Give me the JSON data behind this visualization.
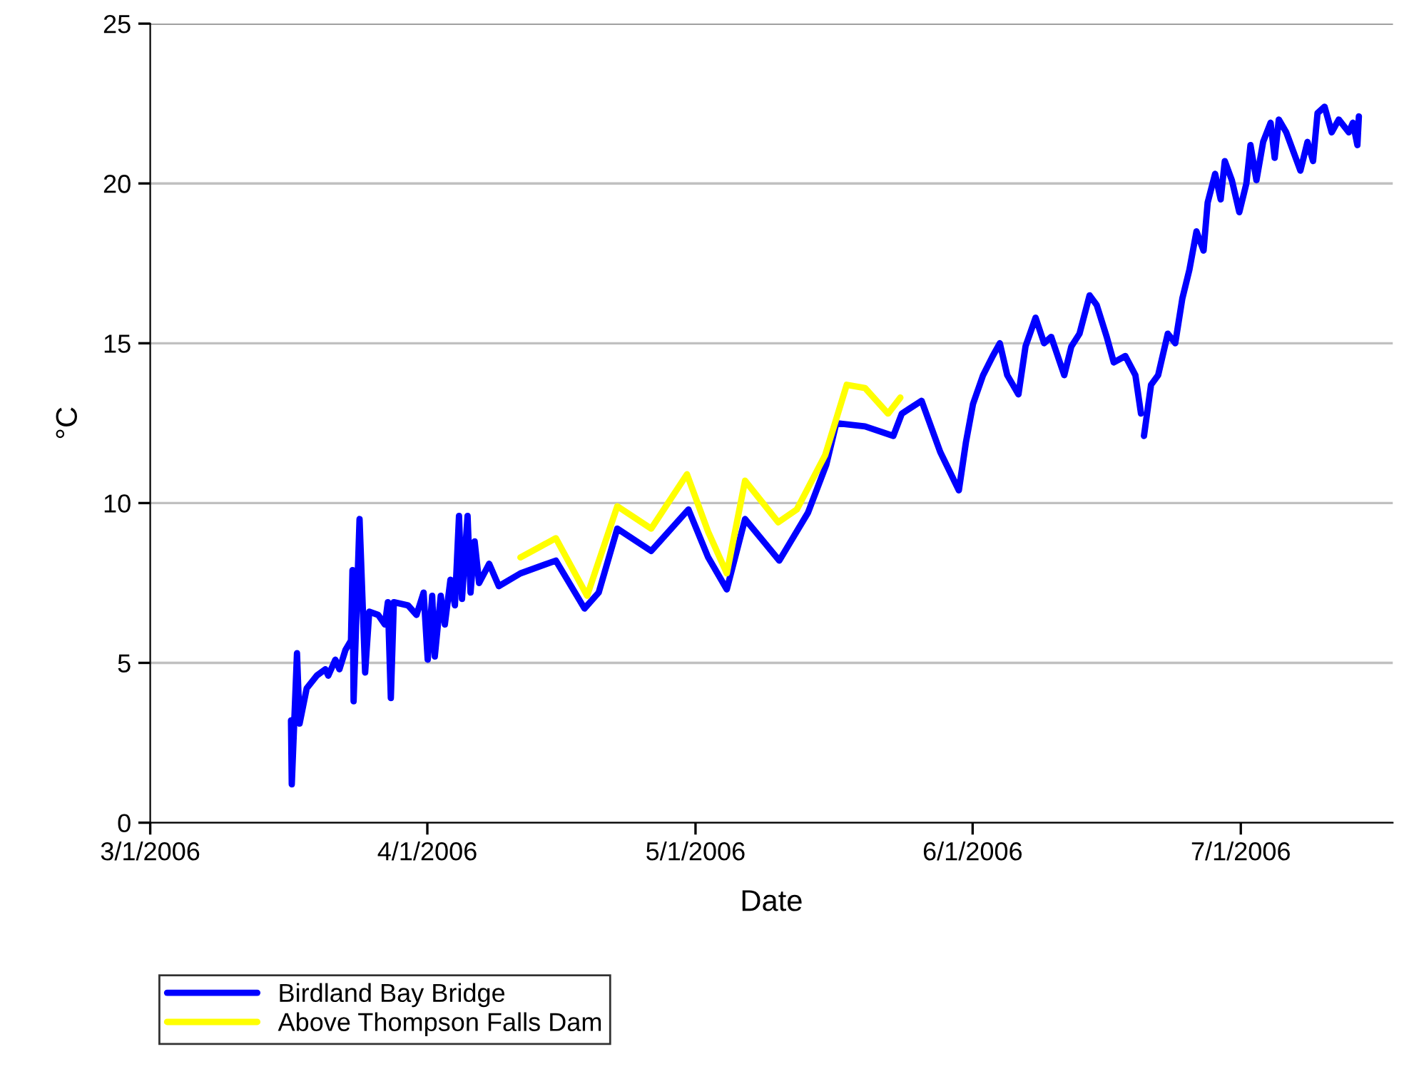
{
  "chart_data": {
    "type": "line",
    "xlabel": "Date",
    "ylabel": "°C",
    "xlim": [
      "2006-03-01",
      "2006-07-18"
    ],
    "xticks": [
      {
        "value": "2006-03-01",
        "label": "3/1/2006"
      },
      {
        "value": "2006-04-01",
        "label": "4/1/2006"
      },
      {
        "value": "2006-05-01",
        "label": "5/1/2006"
      },
      {
        "value": "2006-06-01",
        "label": "6/1/2006"
      },
      {
        "value": "2006-07-01",
        "label": "7/1/2006"
      }
    ],
    "ylim": [
      0,
      25
    ],
    "yticks": [
      0,
      5,
      10,
      15,
      20,
      25
    ],
    "grid": "y",
    "legend": "bottom left",
    "line_style": "solid",
    "marker": "none",
    "series": [
      {
        "name": "Birdland Bay Bridge",
        "color": "#0000ff",
        "x": [
          "2006-03-16T18:00",
          "2006-03-16T20:00",
          "2006-03-17T10:00",
          "2006-03-17T17:00",
          "2006-03-18T12:00",
          "2006-03-19T15:00",
          "2006-03-20T14:00",
          "2006-03-20T22:00",
          "2006-03-21T17:00",
          "2006-03-22T04:00",
          "2006-03-22T20:00",
          "2006-03-23T11:00",
          "2006-03-23T15:00",
          "2006-03-23T18:00",
          "2006-03-24T10:00",
          "2006-03-25T01:00",
          "2006-03-25T12:00",
          "2006-03-26T12:00",
          "2006-03-27T06:00",
          "2006-03-27T14:00",
          "2006-03-27T22:00",
          "2006-03-28T06:00",
          "2006-03-29T20:00",
          "2006-03-30T19:00",
          "2006-03-31T14:00",
          "2006-04-01T01:00",
          "2006-04-01T13:00",
          "2006-04-01T20:00",
          "2006-04-02T12:00",
          "2006-04-02T23:00",
          "2006-04-03T14:00",
          "2006-04-04T02:00",
          "2006-04-04T13:00",
          "2006-04-04T21:00",
          "2006-04-05T12:00",
          "2006-04-05T20:00",
          "2006-04-06T07:00",
          "2006-04-06T19:00",
          "2006-04-07T22:00",
          "2006-04-09T00:00",
          "2006-04-11T10:00",
          "2006-04-15T09:00",
          "2006-04-18T14:00",
          "2006-04-20T04:00",
          "2006-04-22T06:00",
          "2006-04-26T01:00",
          "2006-04-30T05:00",
          "2006-05-02T10:00",
          "2006-05-04T12:00",
          "2006-05-06T13:00",
          "2006-05-10T09:00",
          "2006-05-13T14:00",
          "2006-05-15T15:00",
          "2006-05-16T18:00",
          "2006-05-19T23:00",
          "2006-05-23T03:00",
          "2006-05-24T02:00",
          "2006-05-26T07:00",
          "2006-05-28T09:00",
          "2006-05-30T11:00",
          "2006-05-31T06:00",
          "2006-06-01T01:00",
          "2006-06-02T04:00",
          "2006-06-03T06:00",
          "2006-06-04T01:00",
          "2006-06-04T21:00",
          "2006-06-06T03:00",
          "2006-06-06T22:00",
          "2006-06-08T01:00",
          "2006-06-09T00:00",
          "2006-06-09T19:00",
          "2006-06-11T06:00",
          "2006-06-12T01:00",
          "2006-06-12T23:00",
          "2006-06-14T02:00",
          "2006-06-14T21:00",
          "2006-06-16T00:00",
          "2006-06-16T19:00",
          "2006-06-18T02:00",
          "2006-06-19T05:00",
          "2006-06-19T20:00",
          "2006-06-20T00:00",
          "2006-06-20T04:00",
          "2006-06-20T23:00",
          "2006-06-21T18:00",
          "2006-06-22T20:00",
          "2006-06-23T16:00",
          "2006-06-24T11:00",
          "2006-06-25T06:00",
          "2006-06-26T01:00",
          "2006-06-26T20:00",
          "2006-06-27T07:00",
          "2006-06-28T03:00",
          "2006-06-28T18:00",
          "2006-06-29T05:00",
          "2006-06-30T00:00",
          "2006-06-30T20:00",
          "2006-07-01T15:00",
          "2006-07-02T02:00",
          "2006-07-02T18:00",
          "2006-07-03T12:00",
          "2006-07-04T08:00",
          "2006-07-04T19:00",
          "2006-07-05T06:00",
          "2006-07-06T02:00",
          "2006-07-06T21:00",
          "2006-07-07T16:00",
          "2006-07-08T11:00",
          "2006-07-09T02:00",
          "2006-07-09T14:00",
          "2006-07-10T09:00",
          "2006-07-11T04:00",
          "2006-07-11T23:00",
          "2006-07-13T02:00",
          "2006-07-13T13:00",
          "2006-07-14T01:00",
          "2006-07-14T05:00"
        ],
        "values": [
          3.2,
          1.2,
          5.3,
          3.1,
          4.2,
          4.6,
          4.8,
          4.6,
          5.1,
          4.8,
          5.4,
          5.7,
          7.9,
          3.8,
          9.5,
          4.7,
          6.6,
          6.5,
          6.2,
          6.9,
          3.9,
          6.9,
          6.8,
          6.5,
          7.2,
          5.1,
          7.1,
          5.2,
          7.1,
          6.2,
          7.6,
          6.8,
          9.6,
          7.0,
          9.6,
          7.2,
          8.8,
          7.5,
          8.1,
          7.4,
          7.8,
          8.2,
          6.7,
          7.2,
          9.2,
          8.5,
          9.8,
          8.3,
          7.3,
          9.5,
          8.2,
          9.7,
          11.2,
          12.5,
          12.4,
          12.1,
          12.8,
          13.2,
          11.6,
          10.4,
          11.9,
          13.1,
          14.0,
          14.6,
          15.0,
          14.0,
          13.4,
          14.9,
          15.8,
          15.0,
          15.2,
          14.0,
          14.9,
          15.3,
          16.5,
          16.2,
          15.2,
          14.4,
          14.6,
          14.0,
          12.8,
          null,
          12.1,
          13.7,
          14.0,
          15.3,
          15.0,
          16.4,
          17.3,
          18.5,
          17.9,
          19.4,
          20.3,
          19.5,
          20.7,
          20.1,
          19.1,
          20.0,
          21.2,
          20.1,
          21.3,
          21.9,
          20.8,
          22.0,
          21.6,
          21.0,
          20.4,
          21.3,
          20.7,
          22.2,
          22.4,
          21.6,
          22.0,
          21.6,
          21.9,
          21.2,
          22.1
        ]
      },
      {
        "name": "Above Thompson Falls Dam",
        "color": "#ffff00",
        "x": [
          "2006-04-11T10:00",
          "2006-04-15T09:00",
          "2006-04-18T21:00",
          "2006-04-22T06:00",
          "2006-04-26T01:00",
          "2006-04-30T01:00",
          "2006-05-02T10:00",
          "2006-05-04T12:00",
          "2006-05-06T13:00",
          "2006-05-10T06:00",
          "2006-05-12T08:00",
          "2006-05-15T12:00",
          "2006-05-17T22:00",
          "2006-05-19T23:00",
          "2006-05-22T13:00",
          "2006-05-23T22:00"
        ],
        "values": [
          8.3,
          8.9,
          7.1,
          9.9,
          9.2,
          10.9,
          9.1,
          7.8,
          10.7,
          9.4,
          9.8,
          11.5,
          13.7,
          13.6,
          12.8,
          13.3
        ]
      }
    ]
  }
}
